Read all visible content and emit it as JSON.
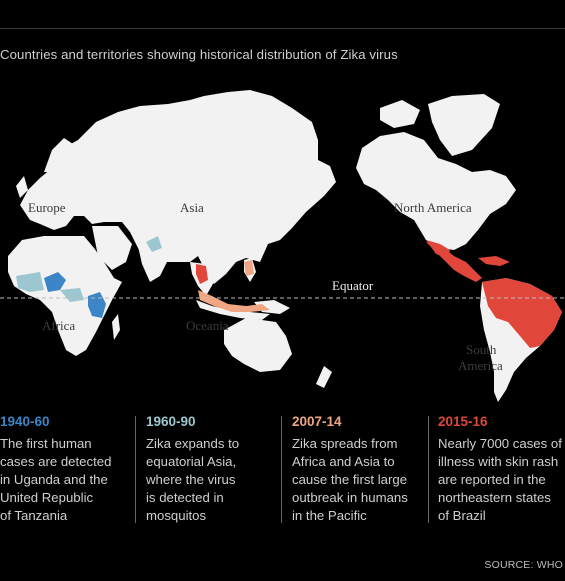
{
  "subtitle": "Countries and territories showing historical distribution of Zika virus",
  "map": {
    "labels": {
      "europe": "Europe",
      "asia": "Asia",
      "north_america": "North America",
      "equator": "Equator",
      "africa": "Africa",
      "oceania": "Oceania",
      "south_america_1": "South",
      "south_america_2": "America"
    },
    "colors": {
      "background": "#000000",
      "land": "#f2f2f2",
      "period_1940_60": "#3c86c8",
      "period_1960_90": "#9cc7d1",
      "period_2007_14": "#f0a583",
      "period_2015_16": "#e0463a"
    }
  },
  "legend": [
    {
      "years": "1940-60",
      "color": "#3c86c8",
      "lines": [
        "The first human",
        "cases are detected",
        "in Uganda and the",
        "United Republic",
        "of Tanzania"
      ]
    },
    {
      "years": "1960-90",
      "color": "#9cc7d1",
      "lines": [
        "Zika expands to",
        "equatorial Asia,",
        "where the virus",
        "is detected in",
        "mosquitos"
      ]
    },
    {
      "years": "2007-14",
      "color": "#f0a583",
      "lines": [
        "Zika spreads from",
        "Africa and Asia to",
        "cause the first large",
        "outbreak in humans",
        "in the Pacific"
      ]
    },
    {
      "years": "2015-16",
      "color": "#e0463a",
      "lines": [
        "Nearly 7000 cases of",
        "illness with skin rash",
        "are reported in the",
        "northeastern states",
        "of Brazil"
      ]
    }
  ],
  "source": "SOURCE: WHO"
}
